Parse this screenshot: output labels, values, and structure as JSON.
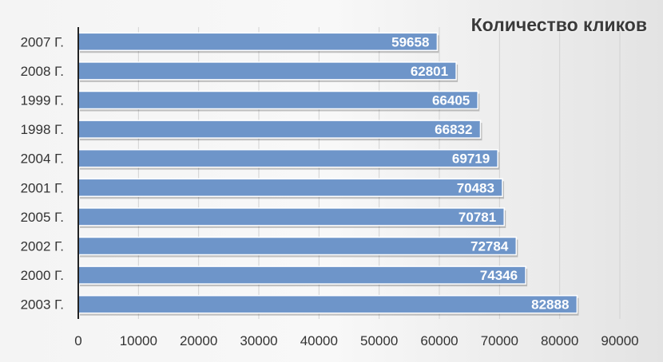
{
  "chart_data": {
    "type": "bar",
    "orientation": "horizontal",
    "title": "Количество кликов",
    "categories": [
      "2007 Г.",
      "2008 Г.",
      "1999 Г.",
      "1998 Г.",
      "2004 Г.",
      "2001 Г.",
      "2005 Г.",
      "2002 Г.",
      "2000 Г.",
      "2003 Г."
    ],
    "values": [
      59658,
      62801,
      66405,
      66832,
      69719,
      70483,
      70781,
      72784,
      74346,
      82888
    ],
    "xlim": [
      0,
      90000
    ],
    "x_ticks": [
      "0",
      "10000",
      "20000",
      "30000",
      "40000",
      "50000",
      "60000",
      "70000",
      "80000",
      "90000"
    ],
    "grid": true,
    "data_labels": true,
    "colors": {
      "bar": "#6e95c9",
      "label": "#ffffff"
    }
  }
}
